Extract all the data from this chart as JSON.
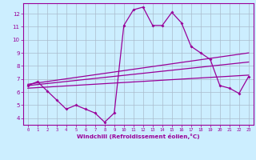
{
  "xlabel": "Windchill (Refroidissement éolien,°C)",
  "bg_color": "#cceeff",
  "line_color": "#990099",
  "grid_color": "#aabbcc",
  "x": [
    0,
    1,
    2,
    3,
    4,
    5,
    6,
    7,
    8,
    9,
    10,
    11,
    12,
    13,
    14,
    15,
    16,
    17,
    18,
    19,
    20,
    21,
    22,
    23
  ],
  "main_line": [
    6.5,
    6.8,
    6.1,
    5.4,
    4.7,
    5.0,
    4.7,
    4.4,
    3.7,
    4.4,
    11.1,
    12.3,
    12.5,
    11.1,
    11.1,
    12.1,
    11.3,
    9.5,
    9.0,
    8.5,
    6.5,
    6.3,
    5.9,
    7.2
  ],
  "linear_lines": [
    {
      "x0": 0,
      "y0": 6.6,
      "x1": 23,
      "y1": 9.0
    },
    {
      "x0": 0,
      "y0": 6.5,
      "x1": 23,
      "y1": 8.3
    },
    {
      "x0": 0,
      "y0": 6.3,
      "x1": 23,
      "y1": 7.3
    }
  ],
  "ylim": [
    3.5,
    12.8
  ],
  "yticks": [
    4,
    5,
    6,
    7,
    8,
    9,
    10,
    11,
    12
  ],
  "xticks": [
    0,
    1,
    2,
    3,
    4,
    5,
    6,
    7,
    8,
    9,
    10,
    11,
    12,
    13,
    14,
    15,
    16,
    17,
    18,
    19,
    20,
    21,
    22,
    23
  ]
}
